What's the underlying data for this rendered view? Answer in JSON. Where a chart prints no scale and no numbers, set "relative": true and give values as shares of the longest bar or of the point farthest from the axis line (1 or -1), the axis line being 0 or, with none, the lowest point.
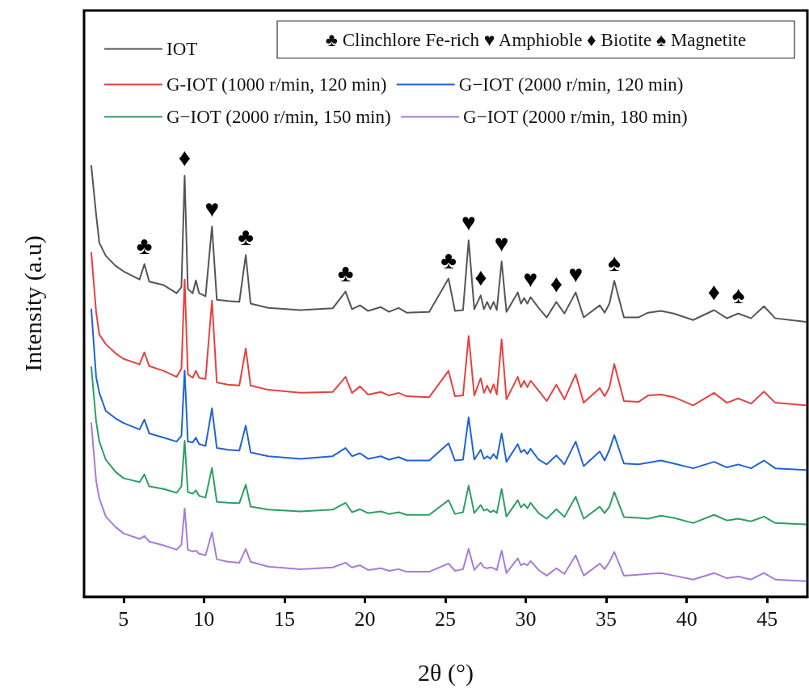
{
  "chart_data": {
    "type": "line",
    "relative": true,
    "xlabel": "2θ (°)",
    "ylabel": "Intensity (a.u)",
    "xlim": [
      2.55,
      47.5
    ],
    "xticks": [
      5,
      10,
      15,
      20,
      25,
      30,
      35,
      40,
      45
    ],
    "x": [
      3,
      3.3,
      3.5,
      3.9,
      4.5,
      5,
      6,
      6.3,
      6.6,
      7.5,
      8.3,
      8.6,
      8.8,
      9.0,
      9.3,
      9.5,
      9.7,
      10.1,
      10.5,
      10.8,
      11.5,
      12.2,
      12.6,
      12.9,
      14,
      16,
      18,
      18.8,
      19.2,
      19.7,
      20.2,
      21,
      21.5,
      22.1,
      22.6,
      24,
      25.2,
      25.6,
      26.1,
      26.45,
      26.8,
      27.2,
      27.4,
      27.6,
      27.8,
      28.0,
      28.2,
      28.5,
      28.8,
      29.5,
      29.7,
      29.9,
      30.1,
      30.3,
      30.8,
      31.3,
      31.9,
      32.4,
      33.1,
      33.6,
      34.6,
      34.9,
      35.2,
      35.5,
      36.1,
      37,
      37.6,
      38.4,
      39.2,
      40.4,
      41.7,
      42.5,
      43.2,
      44,
      44.8,
      45.5,
      47.4
    ],
    "marker": "none",
    "line_style": "solid",
    "grid": false,
    "legend": "top left",
    "series": [
      {
        "name": "IOT",
        "color": "#555555",
        "values": [
          1.0,
          0.887,
          0.821,
          0.791,
          0.768,
          0.755,
          0.736,
          0.772,
          0.731,
          0.723,
          0.704,
          0.718,
          0.977,
          0.714,
          0.704,
          0.734,
          0.704,
          0.697,
          0.859,
          0.689,
          0.686,
          0.684,
          0.793,
          0.68,
          0.67,
          0.665,
          0.669,
          0.708,
          0.667,
          0.676,
          0.663,
          0.672,
          0.661,
          0.67,
          0.659,
          0.661,
          0.738,
          0.663,
          0.665,
          0.827,
          0.667,
          0.699,
          0.667,
          0.684,
          0.667,
          0.684,
          0.665,
          0.778,
          0.661,
          0.706,
          0.68,
          0.693,
          0.68,
          0.695,
          0.67,
          0.648,
          0.684,
          0.657,
          0.706,
          0.648,
          0.676,
          0.659,
          0.68,
          0.733,
          0.648,
          0.648,
          0.659,
          0.663,
          0.657,
          0.642,
          0.665,
          0.646,
          0.657,
          0.646,
          0.674,
          0.646,
          0.638
        ]
      },
      {
        "name": "G-IOT (1000 r/min, 120 min)",
        "color": "#e8403f",
        "values": [
          0.798,
          0.661,
          0.608,
          0.586,
          0.565,
          0.552,
          0.539,
          0.567,
          0.535,
          0.524,
          0.51,
          0.529,
          0.736,
          0.516,
          0.508,
          0.524,
          0.508,
          0.505,
          0.687,
          0.497,
          0.492,
          0.49,
          0.576,
          0.49,
          0.48,
          0.473,
          0.475,
          0.51,
          0.473,
          0.488,
          0.469,
          0.475,
          0.467,
          0.473,
          0.465,
          0.463,
          0.524,
          0.465,
          0.467,
          0.605,
          0.467,
          0.507,
          0.473,
          0.49,
          0.473,
          0.493,
          0.469,
          0.597,
          0.458,
          0.51,
          0.486,
          0.501,
          0.486,
          0.501,
          0.478,
          0.454,
          0.492,
          0.458,
          0.516,
          0.45,
          0.484,
          0.465,
          0.486,
          0.54,
          0.454,
          0.452,
          0.467,
          0.469,
          0.463,
          0.444,
          0.473,
          0.45,
          0.46,
          0.448,
          0.476,
          0.45,
          0.444
        ]
      },
      {
        "name": "G−IOT (2000 r/min, 120 min)",
        "color": "#1f63d6",
        "values": [
          0.667,
          0.51,
          0.473,
          0.431,
          0.414,
          0.403,
          0.388,
          0.411,
          0.379,
          0.369,
          0.36,
          0.373,
          0.525,
          0.36,
          0.358,
          0.369,
          0.354,
          0.35,
          0.437,
          0.345,
          0.341,
          0.339,
          0.397,
          0.335,
          0.326,
          0.32,
          0.326,
          0.345,
          0.326,
          0.333,
          0.32,
          0.326,
          0.318,
          0.324,
          0.316,
          0.316,
          0.356,
          0.316,
          0.318,
          0.416,
          0.318,
          0.341,
          0.32,
          0.326,
          0.32,
          0.331,
          0.32,
          0.379,
          0.313,
          0.354,
          0.335,
          0.341,
          0.331,
          0.343,
          0.318,
          0.307,
          0.328,
          0.307,
          0.36,
          0.303,
          0.337,
          0.316,
          0.341,
          0.375,
          0.309,
          0.307,
          0.311,
          0.316,
          0.309,
          0.298,
          0.313,
          0.3,
          0.307,
          0.298,
          0.316,
          0.298,
          0.294
        ]
      },
      {
        "name": "G−IOT (2000 r/min, 150 min)",
        "color": "#2e9e63",
        "values": [
          0.533,
          0.407,
          0.36,
          0.318,
          0.29,
          0.275,
          0.266,
          0.284,
          0.256,
          0.25,
          0.241,
          0.256,
          0.362,
          0.243,
          0.239,
          0.247,
          0.234,
          0.23,
          0.299,
          0.22,
          0.218,
          0.217,
          0.26,
          0.209,
          0.202,
          0.198,
          0.202,
          0.218,
          0.196,
          0.203,
          0.194,
          0.198,
          0.192,
          0.196,
          0.19,
          0.19,
          0.224,
          0.192,
          0.196,
          0.258,
          0.194,
          0.213,
          0.2,
          0.203,
          0.196,
          0.2,
          0.194,
          0.25,
          0.186,
          0.224,
          0.207,
          0.215,
          0.205,
          0.218,
          0.194,
          0.181,
          0.203,
          0.185,
          0.232,
          0.181,
          0.209,
          0.194,
          0.209,
          0.243,
          0.185,
          0.183,
          0.181,
          0.188,
          0.183,
          0.171,
          0.19,
          0.177,
          0.181,
          0.175,
          0.186,
          0.171,
          0.168
        ]
      },
      {
        "name": "G−IOT (2000 r/min, 180 min)",
        "color": "#a77bd9",
        "values": [
          0.403,
          0.269,
          0.228,
          0.186,
          0.162,
          0.147,
          0.134,
          0.141,
          0.128,
          0.119,
          0.109,
          0.121,
          0.205,
          0.109,
          0.105,
          0.107,
          0.1,
          0.096,
          0.149,
          0.087,
          0.081,
          0.079,
          0.111,
          0.081,
          0.07,
          0.064,
          0.068,
          0.079,
          0.068,
          0.073,
          0.062,
          0.066,
          0.06,
          0.064,
          0.058,
          0.058,
          0.077,
          0.06,
          0.064,
          0.111,
          0.062,
          0.079,
          0.068,
          0.066,
          0.068,
          0.066,
          0.062,
          0.107,
          0.055,
          0.089,
          0.073,
          0.077,
          0.073,
          0.083,
          0.062,
          0.049,
          0.066,
          0.053,
          0.096,
          0.049,
          0.077,
          0.064,
          0.081,
          0.104,
          0.049,
          0.051,
          0.053,
          0.055,
          0.049,
          0.04,
          0.055,
          0.043,
          0.047,
          0.04,
          0.055,
          0.04,
          0.036
        ]
      }
    ],
    "annotations": [
      "♣ Clinchlore Fe-rich ♥ Amphioble ♦ Biotite ♠ Magnetite",
      {
        "text": "♣",
        "x": 6.3,
        "y": 0.772
      },
      {
        "text": "♦",
        "x": 8.8,
        "y": 0.977
      },
      {
        "text": "♥",
        "x": 10.5,
        "y": 0.859
      },
      {
        "text": "♣",
        "x": 12.6,
        "y": 0.793
      },
      {
        "text": "♣",
        "x": 18.8,
        "y": 0.708
      },
      {
        "text": "♣",
        "x": 25.2,
        "y": 0.738
      },
      {
        "text": "♥",
        "x": 26.45,
        "y": 0.827
      },
      {
        "text": "♦",
        "x": 27.2,
        "y": 0.699
      },
      {
        "text": "♥",
        "x": 28.5,
        "y": 0.778
      },
      {
        "text": "♥",
        "x": 30.3,
        "y": 0.695
      },
      {
        "text": "♦",
        "x": 31.9,
        "y": 0.684
      },
      {
        "text": "♥",
        "x": 33.1,
        "y": 0.706
      },
      {
        "text": "♠",
        "x": 35.5,
        "y": 0.733
      },
      {
        "text": "♦",
        "x": 41.7,
        "y": 0.665
      },
      {
        "text": "♠",
        "x": 43.2,
        "y": 0.657
      }
    ]
  }
}
